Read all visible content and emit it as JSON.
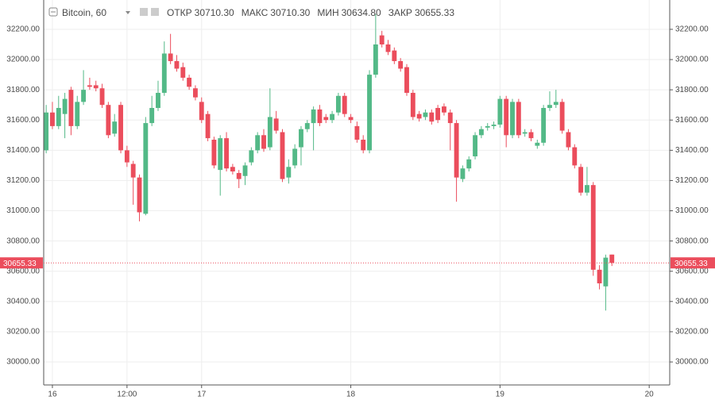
{
  "chart_data": {
    "type": "candlestick",
    "header": {
      "symbol": "Bitcoin, 60",
      "fields": [
        {
          "label": "ОТКР",
          "value": "30710.30"
        },
        {
          "label": "МАКС",
          "value": "30710.30"
        },
        {
          "label": "МИН",
          "value": "30634.80"
        },
        {
          "label": "ЗАКР",
          "value": "30655.33"
        }
      ]
    },
    "up_color": "#53b987",
    "down_color": "#eb4d5c",
    "open": [
      31400,
      31650,
      31560,
      31640,
      31800,
      31560,
      31720,
      31830,
      31830,
      31810,
      31700,
      31510,
      31700,
      31400,
      31310,
      31220,
      30980,
      31580,
      31680,
      31780,
      32040,
      31990,
      31950,
      31880,
      31810,
      31720,
      31640,
      31470,
      31270,
      31480,
      31290,
      31250,
      31230,
      31320,
      31400,
      31500,
      31420,
      31610,
      31520,
      31220,
      31300,
      31420,
      31540,
      31580,
      31670,
      31620,
      31600,
      31650,
      31760,
      31620,
      31560,
      31470,
      31400,
      31900,
      32160,
      32100,
      32060,
      31990,
      31950,
      31780,
      31640,
      31620,
      31650,
      31680,
      31690,
      31650,
      31580,
      31210,
      31280,
      31360,
      31500,
      31550,
      31560,
      31570,
      31740,
      31500,
      31720,
      31510,
      31520,
      31430,
      31450,
      31680,
      31700,
      31720,
      31520,
      31420,
      31290,
      31120,
      31170,
      30610,
      30500,
      30710.3
    ],
    "high": [
      31700,
      31720,
      31760,
      31780,
      31820,
      31760,
      31930,
      31880,
      31860,
      31840,
      31720,
      31640,
      31720,
      31430,
      31330,
      31240,
      31620,
      31760,
      31860,
      32120,
      32170,
      32030,
      31980,
      31900,
      31830,
      31750,
      31660,
      31490,
      31500,
      31520,
      31310,
      31270,
      31320,
      31420,
      31520,
      31540,
      31810,
      31660,
      31540,
      31340,
      31440,
      31560,
      31600,
      31690,
      31700,
      31640,
      31660,
      31780,
      31780,
      31640,
      31590,
      31500,
      31930,
      32300,
      32190,
      32130,
      32080,
      32010,
      31970,
      31800,
      31660,
      31670,
      31670,
      31700,
      31710,
      31670,
      31600,
      31300,
      31360,
      31520,
      31560,
      31580,
      31590,
      31760,
      31760,
      31740,
      31740,
      31540,
      31540,
      31470,
      31700,
      31790,
      31800,
      31740,
      31540,
      31440,
      31310,
      31290,
      31190,
      30640,
      30710,
      30710.3
    ],
    "low": [
      31380,
      31540,
      31540,
      31480,
      31500,
      31540,
      31700,
      31800,
      31790,
      31680,
      31480,
      31490,
      31380,
      31290,
      31040,
      30930,
      30970,
      31560,
      31660,
      31760,
      31970,
      31920,
      31860,
      31800,
      31730,
      31580,
      31460,
      31280,
      31100,
      31260,
      31240,
      31150,
      31170,
      31300,
      31380,
      31390,
      31400,
      31510,
      31190,
      31180,
      31280,
      31300,
      31520,
      31400,
      31560,
      31580,
      31580,
      31630,
      31620,
      31580,
      31450,
      31380,
      31380,
      31880,
      32080,
      32030,
      31970,
      31920,
      31760,
      31600,
      31590,
      31600,
      31570,
      31580,
      31630,
      31400,
      31060,
      31190,
      31260,
      31340,
      31480,
      31530,
      31540,
      31550,
      31420,
      31480,
      31480,
      31490,
      31460,
      31410,
      31430,
      31660,
      31680,
      31510,
      31400,
      31280,
      31100,
      31100,
      30570,
      30480,
      30340,
      30634.8
    ],
    "close": [
      31650,
      31560,
      31680,
      31740,
      31560,
      31720,
      31800,
      31820,
      31810,
      31700,
      31500,
      31590,
      31400,
      31320,
      31220,
      30990,
      31580,
      31680,
      31780,
      32040,
      31990,
      31940,
      31880,
      31820,
      31750,
      31600,
      31480,
      31300,
      31480,
      31280,
      31260,
      31210,
      31300,
      31400,
      31500,
      31410,
      31620,
      31530,
      31210,
      31290,
      31410,
      31540,
      31580,
      31670,
      31580,
      31600,
      31640,
      31760,
      31640,
      31600,
      31470,
      31400,
      31900,
      32100,
      32100,
      32050,
      31990,
      31940,
      31780,
      31620,
      31610,
      31650,
      31590,
      31600,
      31650,
      31580,
      31220,
      31280,
      31340,
      31500,
      31540,
      31560,
      31570,
      31740,
      31500,
      31720,
      31500,
      31520,
      31480,
      31450,
      31680,
      31700,
      31720,
      31530,
      31420,
      31300,
      31120,
      31170,
      30610,
      30520,
      30690,
      30655.33
    ],
    "xlim": [
      -0.4,
      100.3
    ],
    "xticks": [
      {
        "value": 1,
        "label": "16"
      },
      {
        "value": 13,
        "label": "12:00"
      },
      {
        "value": 25,
        "label": "17"
      },
      {
        "value": 49,
        "label": "18"
      },
      {
        "value": 73,
        "label": "19"
      },
      {
        "value": 97,
        "label": "20"
      }
    ],
    "ylim": [
      29848,
      32394
    ],
    "yticks": [
      {
        "value": 30000,
        "label": "30000.00"
      },
      {
        "value": 30200,
        "label": "30200.00"
      },
      {
        "value": 30400,
        "label": "30400.00"
      },
      {
        "value": 30600,
        "label": "30600.00"
      },
      {
        "value": 30800,
        "label": "30800.00"
      },
      {
        "value": 31000,
        "label": "31000.00"
      },
      {
        "value": 31200,
        "label": "31200.00"
      },
      {
        "value": 31400,
        "label": "31400.00"
      },
      {
        "value": 31600,
        "label": "31600.00"
      },
      {
        "value": 31800,
        "label": "31800.00"
      },
      {
        "value": 32000,
        "label": "32000.00"
      },
      {
        "value": 32200,
        "label": "32200.00"
      }
    ],
    "grid": true,
    "last_price": {
      "value": 30655.33,
      "label": "30655.33"
    }
  }
}
